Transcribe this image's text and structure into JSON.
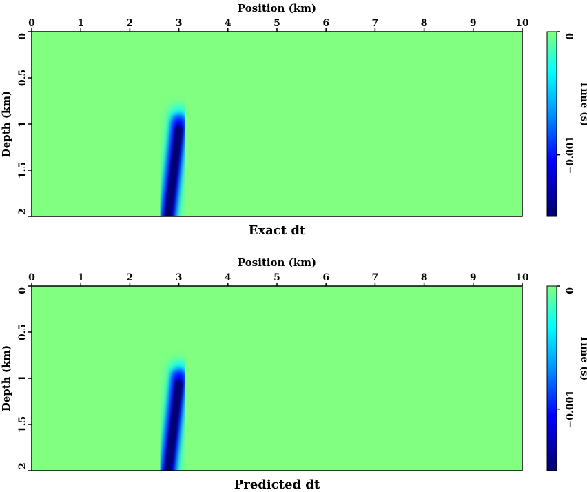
{
  "chart_data": [
    {
      "type": "heatmap",
      "title": "Exact dt",
      "xlabel": "Position (km)",
      "ylabel": "Depth (km)",
      "xlim": [
        0,
        10
      ],
      "ylim": [
        0,
        2
      ],
      "x_ticks": [
        "0",
        "1",
        "2",
        "3",
        "4",
        "5",
        "6",
        "7",
        "8",
        "9",
        "10"
      ],
      "y_ticks": [
        "0",
        "0.5",
        "1",
        "1.5",
        "2"
      ],
      "y_tick_values": [
        0,
        0.5,
        1,
        1.5,
        2
      ],
      "colorbar": {
        "label": "Time (s)",
        "ticks": [
          "0",
          "−0.001"
        ],
        "tick_values": [
          0,
          -0.001
        ],
        "range": [
          -0.0015,
          0
        ]
      },
      "anomaly": {
        "top": [
          3.0,
          0.95
        ],
        "bottom": [
          2.75,
          2.0
        ],
        "half_width_km": 0.2,
        "min_value": -0.0015
      },
      "background_color": "#80ff80"
    },
    {
      "type": "heatmap",
      "title": "Predicted dt",
      "xlabel": "Position (km)",
      "ylabel": "Depth (km)",
      "xlim": [
        0,
        10
      ],
      "ylim": [
        0,
        2
      ],
      "x_ticks": [
        "0",
        "1",
        "2",
        "3",
        "4",
        "5",
        "6",
        "7",
        "8",
        "9",
        "10"
      ],
      "y_ticks": [
        "0",
        "0.5",
        "1",
        "1.5",
        "2"
      ],
      "y_tick_values": [
        0,
        0.5,
        1,
        1.5,
        2
      ],
      "colorbar": {
        "label": "Time (s)",
        "ticks": [
          "0",
          "−0.001"
        ],
        "tick_values": [
          0,
          -0.001
        ],
        "range": [
          -0.0015,
          0
        ]
      },
      "anomaly": {
        "top": [
          3.0,
          0.95
        ],
        "bottom": [
          2.75,
          2.0
        ],
        "half_width_km": 0.2,
        "min_value": -0.0015
      },
      "background_color": "#80ff80"
    }
  ]
}
